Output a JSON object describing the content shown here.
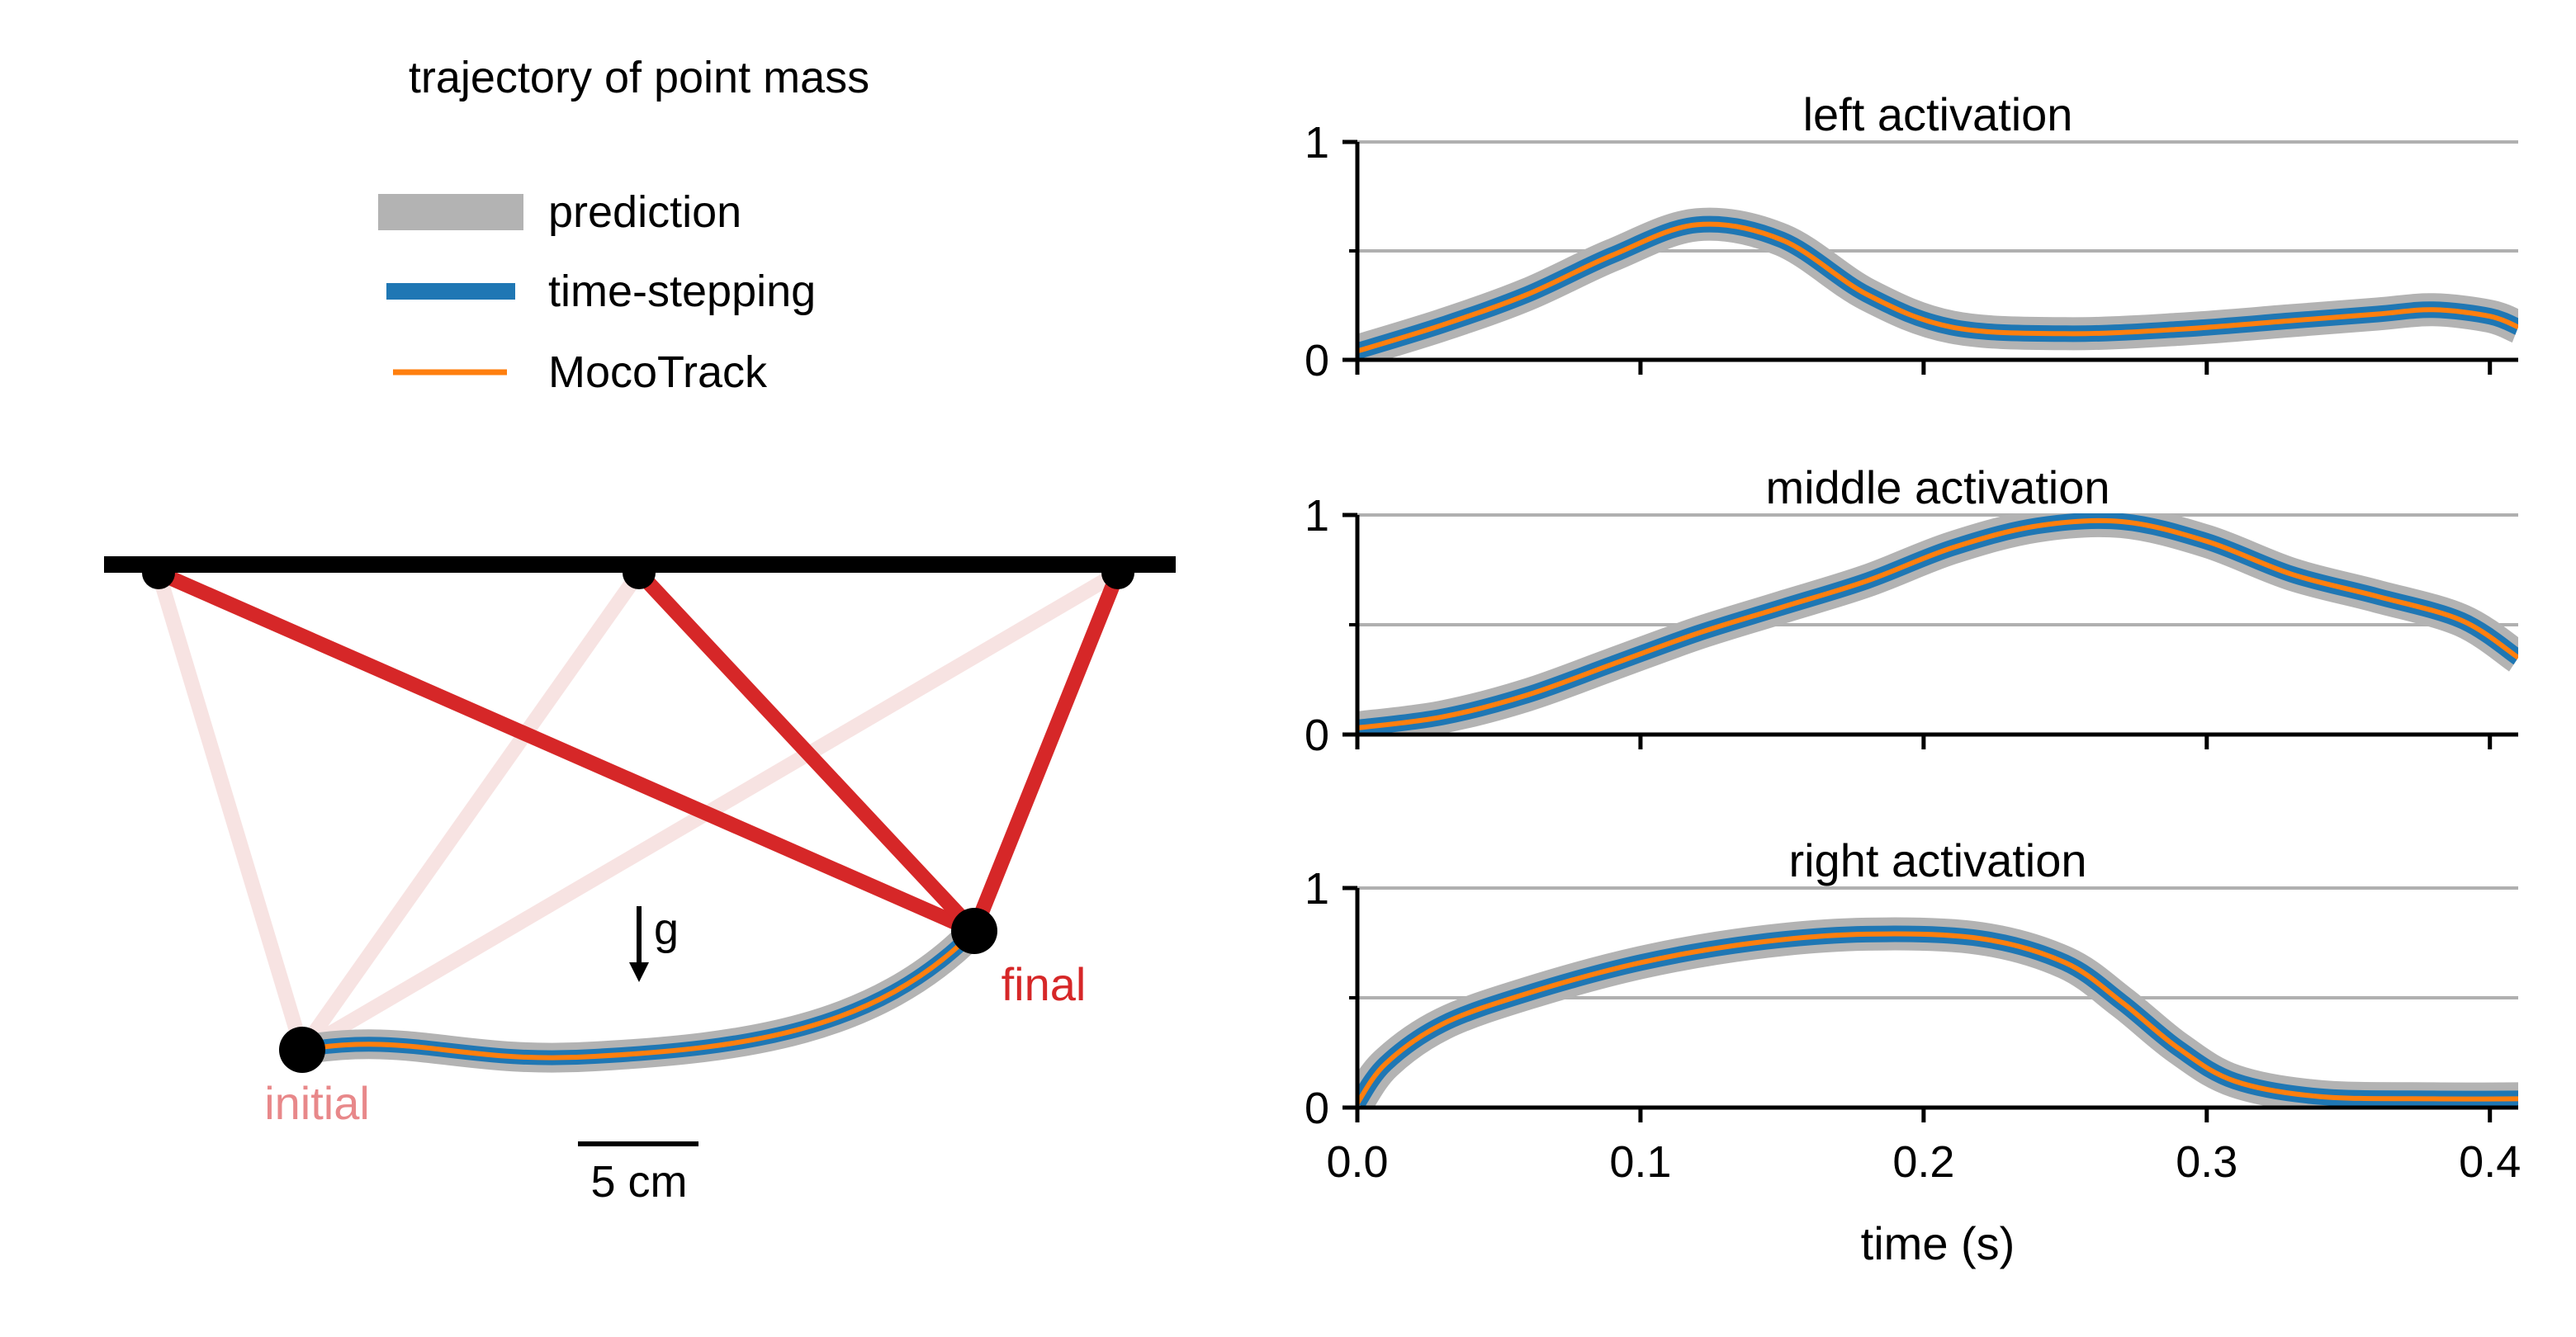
{
  "figure": {
    "left_title": "trajectory of point mass",
    "legend": [
      {
        "label": "prediction",
        "color": "#b3b3b3"
      },
      {
        "label": "time-stepping",
        "color": "#1f77b4"
      },
      {
        "label": "MocoTrack",
        "color": "#ff7f0e"
      }
    ],
    "gravity_label": "g",
    "initial_label": "initial",
    "final_label": "final",
    "scale_bar_label": "5 cm",
    "colors": {
      "muscle_final": "#d62728",
      "muscle_initial": "#f7e3e2",
      "initial_label": "#e8888a",
      "ceiling": "#000000"
    }
  },
  "chart_data": [
    {
      "type": "line",
      "title": "left activation",
      "xlabel": "",
      "ylabel": "",
      "xlim": [
        0,
        0.41
      ],
      "ylim": [
        0,
        1
      ],
      "yticks": [
        0,
        1
      ],
      "yticks_minor": [
        0.5
      ],
      "grid": "horizontal",
      "series": [
        {
          "name": "prediction",
          "points": [
            [
              0,
              0.04
            ],
            [
              0.03,
              0.16
            ],
            [
              0.06,
              0.3
            ],
            [
              0.09,
              0.48
            ],
            [
              0.12,
              0.62
            ],
            [
              0.15,
              0.55
            ],
            [
              0.18,
              0.3
            ],
            [
              0.21,
              0.15
            ],
            [
              0.25,
              0.12
            ],
            [
              0.29,
              0.14
            ],
            [
              0.33,
              0.18
            ],
            [
              0.36,
              0.21
            ],
            [
              0.38,
              0.23
            ],
            [
              0.4,
              0.2
            ],
            [
              0.41,
              0.15
            ]
          ]
        },
        {
          "name": "time-stepping",
          "points": [
            [
              0,
              0.04
            ],
            [
              0.03,
              0.16
            ],
            [
              0.06,
              0.3
            ],
            [
              0.09,
              0.48
            ],
            [
              0.12,
              0.62
            ],
            [
              0.15,
              0.55
            ],
            [
              0.18,
              0.3
            ],
            [
              0.21,
              0.15
            ],
            [
              0.25,
              0.12
            ],
            [
              0.29,
              0.14
            ],
            [
              0.33,
              0.18
            ],
            [
              0.36,
              0.21
            ],
            [
              0.38,
              0.23
            ],
            [
              0.4,
              0.2
            ],
            [
              0.41,
              0.15
            ]
          ]
        },
        {
          "name": "MocoTrack",
          "points": [
            [
              0,
              0.04
            ],
            [
              0.03,
              0.16
            ],
            [
              0.06,
              0.3
            ],
            [
              0.09,
              0.48
            ],
            [
              0.12,
              0.62
            ],
            [
              0.15,
              0.55
            ],
            [
              0.18,
              0.3
            ],
            [
              0.21,
              0.15
            ],
            [
              0.25,
              0.12
            ],
            [
              0.29,
              0.14
            ],
            [
              0.33,
              0.18
            ],
            [
              0.36,
              0.21
            ],
            [
              0.38,
              0.23
            ],
            [
              0.4,
              0.2
            ],
            [
              0.41,
              0.15
            ]
          ]
        }
      ]
    },
    {
      "type": "line",
      "title": "middle activation",
      "xlabel": "",
      "ylabel": "",
      "xlim": [
        0,
        0.41
      ],
      "ylim": [
        0,
        1
      ],
      "yticks": [
        0,
        1
      ],
      "yticks_minor": [
        0.5
      ],
      "grid": "horizontal",
      "series": [
        {
          "name": "prediction",
          "points": [
            [
              0,
              0.03
            ],
            [
              0.03,
              0.08
            ],
            [
              0.06,
              0.18
            ],
            [
              0.09,
              0.32
            ],
            [
              0.12,
              0.46
            ],
            [
              0.15,
              0.58
            ],
            [
              0.18,
              0.7
            ],
            [
              0.21,
              0.85
            ],
            [
              0.24,
              0.95
            ],
            [
              0.27,
              0.97
            ],
            [
              0.3,
              0.88
            ],
            [
              0.33,
              0.73
            ],
            [
              0.36,
              0.63
            ],
            [
              0.39,
              0.52
            ],
            [
              0.41,
              0.35
            ]
          ]
        },
        {
          "name": "time-stepping",
          "points": [
            [
              0,
              0.03
            ],
            [
              0.03,
              0.08
            ],
            [
              0.06,
              0.18
            ],
            [
              0.09,
              0.32
            ],
            [
              0.12,
              0.46
            ],
            [
              0.15,
              0.58
            ],
            [
              0.18,
              0.7
            ],
            [
              0.21,
              0.85
            ],
            [
              0.24,
              0.95
            ],
            [
              0.27,
              0.97
            ],
            [
              0.3,
              0.88
            ],
            [
              0.33,
              0.73
            ],
            [
              0.36,
              0.63
            ],
            [
              0.39,
              0.52
            ],
            [
              0.41,
              0.35
            ]
          ]
        },
        {
          "name": "MocoTrack",
          "points": [
            [
              0,
              0.03
            ],
            [
              0.03,
              0.08
            ],
            [
              0.06,
              0.18
            ],
            [
              0.09,
              0.32
            ],
            [
              0.12,
              0.46
            ],
            [
              0.15,
              0.58
            ],
            [
              0.18,
              0.7
            ],
            [
              0.21,
              0.85
            ],
            [
              0.24,
              0.95
            ],
            [
              0.27,
              0.97
            ],
            [
              0.3,
              0.88
            ],
            [
              0.33,
              0.73
            ],
            [
              0.36,
              0.63
            ],
            [
              0.39,
              0.52
            ],
            [
              0.41,
              0.35
            ]
          ]
        }
      ]
    },
    {
      "type": "line",
      "title": "right activation",
      "xlabel": "time (s)",
      "ylabel": "",
      "xlim": [
        0,
        0.41
      ],
      "ylim": [
        0,
        1
      ],
      "yticks": [
        0,
        1
      ],
      "yticks_minor": [
        0.5
      ],
      "xticks": [
        0.0,
        0.1,
        0.2,
        0.3,
        0.4
      ],
      "xtick_labels": [
        "0.0",
        "0.1",
        "0.2",
        "0.3",
        "0.4"
      ],
      "grid": "horizontal",
      "series": [
        {
          "name": "prediction",
          "points": [
            [
              0,
              0.02
            ],
            [
              0.01,
              0.2
            ],
            [
              0.03,
              0.38
            ],
            [
              0.06,
              0.52
            ],
            [
              0.1,
              0.66
            ],
            [
              0.14,
              0.75
            ],
            [
              0.18,
              0.79
            ],
            [
              0.22,
              0.77
            ],
            [
              0.25,
              0.66
            ],
            [
              0.27,
              0.48
            ],
            [
              0.29,
              0.27
            ],
            [
              0.31,
              0.12
            ],
            [
              0.34,
              0.05
            ],
            [
              0.38,
              0.04
            ],
            [
              0.41,
              0.04
            ]
          ]
        },
        {
          "name": "time-stepping",
          "points": [
            [
              0,
              0.02
            ],
            [
              0.01,
              0.2
            ],
            [
              0.03,
              0.38
            ],
            [
              0.06,
              0.52
            ],
            [
              0.1,
              0.66
            ],
            [
              0.14,
              0.75
            ],
            [
              0.18,
              0.79
            ],
            [
              0.22,
              0.77
            ],
            [
              0.25,
              0.66
            ],
            [
              0.27,
              0.48
            ],
            [
              0.29,
              0.27
            ],
            [
              0.31,
              0.12
            ],
            [
              0.34,
              0.05
            ],
            [
              0.38,
              0.04
            ],
            [
              0.41,
              0.04
            ]
          ]
        },
        {
          "name": "MocoTrack",
          "points": [
            [
              0,
              0.02
            ],
            [
              0.01,
              0.2
            ],
            [
              0.03,
              0.38
            ],
            [
              0.06,
              0.52
            ],
            [
              0.1,
              0.66
            ],
            [
              0.14,
              0.75
            ],
            [
              0.18,
              0.79
            ],
            [
              0.22,
              0.77
            ],
            [
              0.25,
              0.66
            ],
            [
              0.27,
              0.48
            ],
            [
              0.29,
              0.27
            ],
            [
              0.31,
              0.12
            ],
            [
              0.34,
              0.05
            ],
            [
              0.38,
              0.04
            ],
            [
              0.41,
              0.04
            ]
          ]
        }
      ]
    }
  ]
}
